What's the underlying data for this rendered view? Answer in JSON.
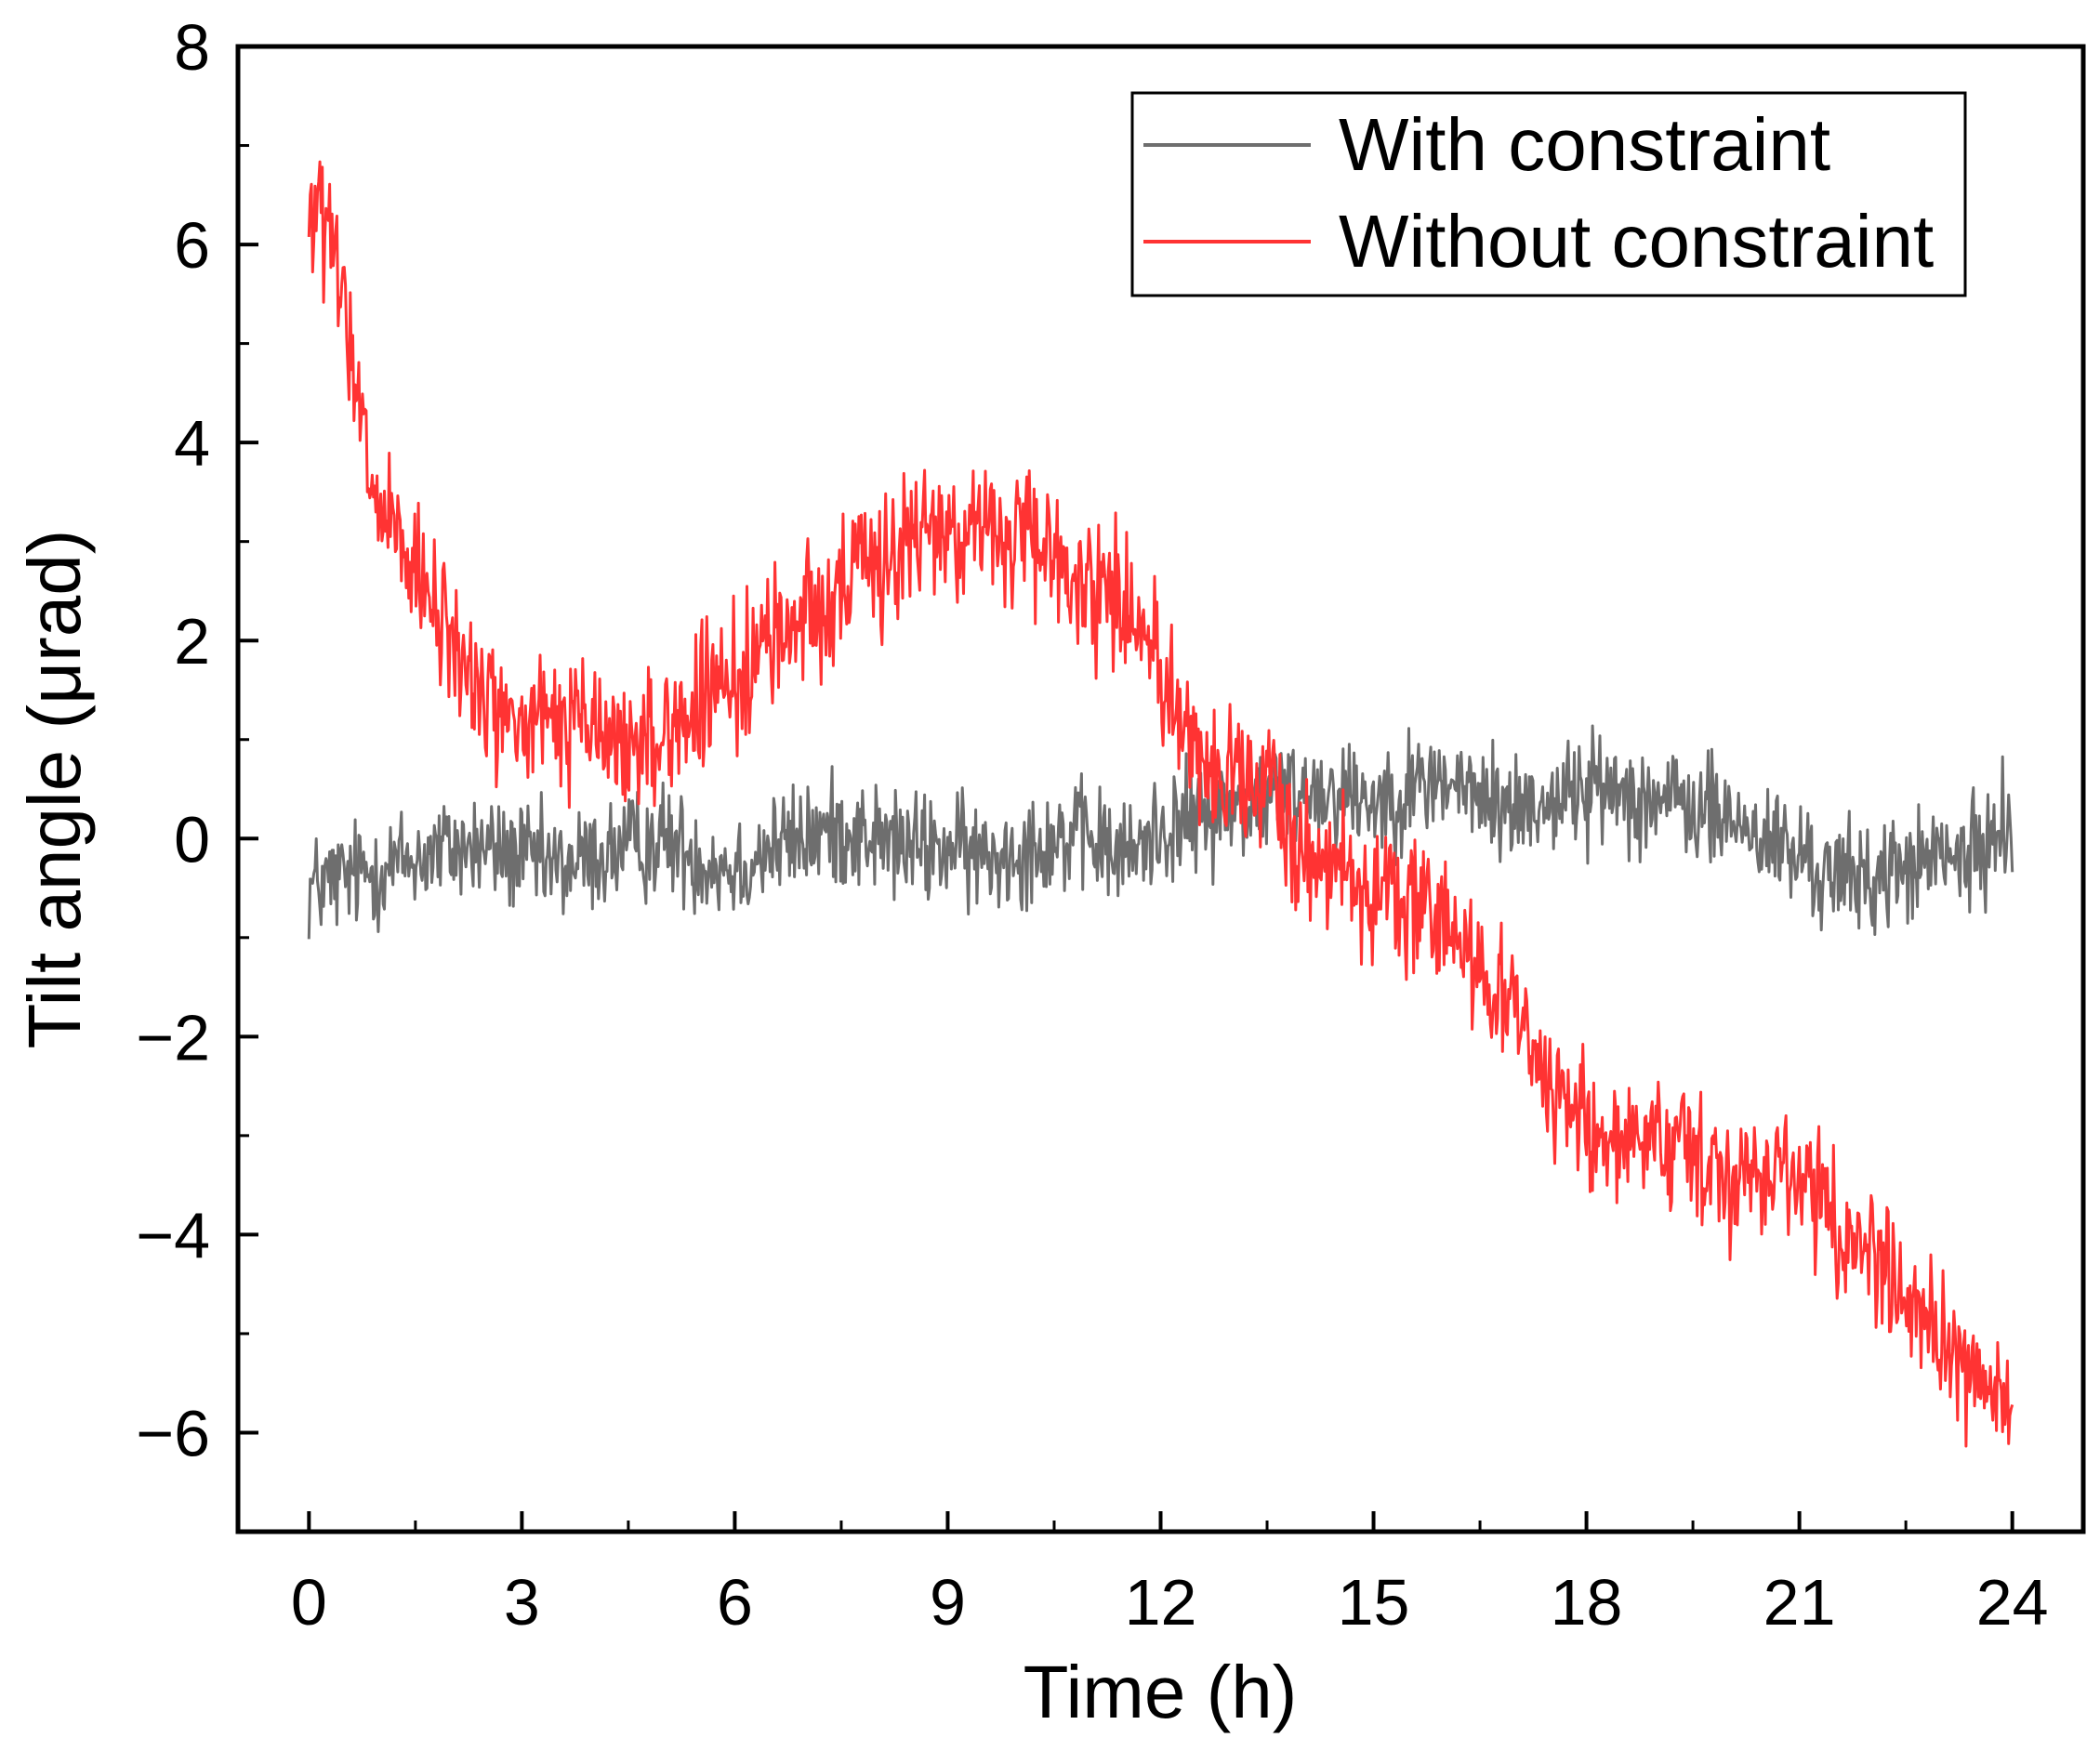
{
  "chart_data": {
    "type": "line",
    "title": "",
    "xlabel": "Time (h)",
    "ylabel": "Tilt angle (μrad)",
    "xlim": [
      -1,
      25
    ],
    "ylim": [
      -7,
      8
    ],
    "xticks": [
      0,
      3,
      6,
      9,
      12,
      15,
      18,
      21,
      24
    ],
    "xtick_labels": [
      "0",
      "3",
      "6",
      "9",
      "12",
      "15",
      "18",
      "21",
      "24"
    ],
    "yticks": [
      -6,
      -4,
      -2,
      0,
      2,
      4,
      6,
      8
    ],
    "ytick_labels": [
      "−6",
      "−4",
      "−2",
      "0",
      "2",
      "4",
      "6",
      "8"
    ],
    "grid": false,
    "legend_position": "top-right",
    "series": [
      {
        "name": "With constraint",
        "color": "#6e6e6e",
        "noise": 0.28,
        "x": [
          0,
          0.5,
          1,
          1.5,
          2,
          2.5,
          3,
          3.5,
          4,
          4.5,
          5,
          5.5,
          6,
          6.5,
          7,
          7.5,
          8,
          8.5,
          9,
          9.5,
          10,
          10.5,
          11,
          11.5,
          12,
          12.5,
          13,
          13.5,
          14,
          14.5,
          15,
          15.5,
          16,
          16.5,
          17,
          17.5,
          18,
          18.5,
          19,
          19.5,
          20,
          20.5,
          21,
          21.5,
          22,
          22.5,
          23,
          23.5,
          24
        ],
        "y": [
          -0.5,
          -0.4,
          -0.3,
          -0.2,
          -0.1,
          -0.1,
          -0.2,
          -0.3,
          -0.2,
          -0.1,
          0.0,
          -0.2,
          -0.3,
          -0.1,
          0.0,
          0.1,
          0.0,
          -0.1,
          -0.1,
          -0.2,
          -0.1,
          0.0,
          0.0,
          -0.2,
          0.1,
          0.2,
          0.3,
          0.4,
          0.5,
          0.5,
          0.4,
          0.5,
          0.6,
          0.4,
          0.3,
          0.4,
          0.5,
          0.5,
          0.4,
          0.3,
          0.2,
          0.0,
          -0.2,
          -0.4,
          -0.4,
          -0.3,
          -0.2,
          -0.2,
          0.3
        ]
      },
      {
        "name": "Without constraint",
        "color": "#ff3333",
        "noise": 0.35,
        "x": [
          0,
          0.25,
          0.5,
          0.75,
          1,
          1.5,
          2,
          2.5,
          3,
          3.5,
          4,
          4.5,
          5,
          5.5,
          6,
          6.5,
          7,
          7.5,
          8,
          8.5,
          9,
          9.5,
          10,
          10.5,
          11,
          11.5,
          12,
          12.5,
          13,
          13.5,
          14,
          14.5,
          15,
          15.5,
          16,
          16.5,
          17,
          17.5,
          18,
          18.5,
          19,
          19.5,
          20,
          20.5,
          21,
          21.5,
          22,
          22.5,
          23,
          23.5,
          24
        ],
        "y": [
          6.3,
          6.2,
          5.3,
          4.0,
          3.3,
          2.6,
          2.0,
          1.4,
          1.1,
          1.2,
          1.1,
          0.9,
          1.1,
          1.3,
          1.6,
          2.0,
          2.3,
          2.5,
          2.8,
          3.0,
          3.2,
          3.1,
          3.0,
          2.8,
          2.6,
          2.4,
          1.8,
          0.8,
          0.6,
          0.4,
          0.0,
          -0.3,
          -0.5,
          -0.7,
          -0.9,
          -1.2,
          -1.8,
          -2.5,
          -2.9,
          -3.1,
          -3.2,
          -3.3,
          -3.3,
          -3.3,
          -3.4,
          -3.8,
          -4.2,
          -4.6,
          -5.0,
          -5.5,
          -5.8
        ]
      }
    ]
  }
}
